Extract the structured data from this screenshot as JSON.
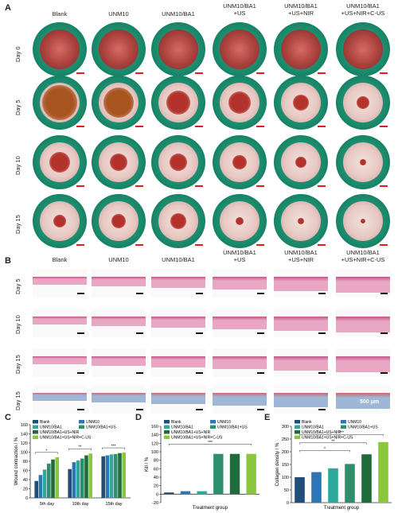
{
  "panels": {
    "A": {
      "letter": "A",
      "columns": [
        "Blank",
        "UNM10",
        "UNM10/BA1",
        "UNM10/BA1\n+US",
        "UNM10/BA1\n+US+NIR",
        "UNM10/BA1\n+US+NIR+C-US"
      ],
      "rows": [
        "Day 0",
        "Day 5",
        "Day 10",
        "Day 15"
      ]
    },
    "B": {
      "letter": "B",
      "columns": [
        "Blank",
        "UNM10",
        "UNM10/BA1",
        "UNM10/BA1\n+US",
        "UNM10/BA1\n+US+NIR",
        "UNM10/BA1\n+US+NIR+C-US"
      ],
      "rows": [
        "Day 5",
        "Day 10",
        "Day 15",
        "Day 15"
      ],
      "scale_label": "500 μm"
    },
    "C": {
      "letter": "C"
    },
    "D": {
      "letter": "D"
    },
    "E": {
      "letter": "E"
    }
  },
  "colors": {
    "blank": "#1f4e79",
    "unm10": "#2e75b6",
    "unm10ba1": "#2ea89a",
    "us": "#2f8f6c",
    "usnir": "#1f6b3a",
    "usnircus": "#8cc63f"
  },
  "chart_data": [
    {
      "type": "bar",
      "ylabel": "Wound contraction / %",
      "ylim": [
        0,
        160
      ],
      "yticks": [
        0,
        20,
        40,
        60,
        80,
        100,
        120,
        140,
        160
      ],
      "categories": [
        "5th day",
        "10th day",
        "15th day"
      ],
      "series": [
        {
          "name": "Blank",
          "values": [
            37,
            63,
            91
          ]
        },
        {
          "name": "UNM10",
          "values": [
            50,
            78,
            93
          ]
        },
        {
          "name": "UNM10/BA1",
          "values": [
            62,
            82,
            95
          ]
        },
        {
          "name": "UNM10/BA1+US",
          "values": [
            75,
            86,
            96
          ]
        },
        {
          "name": "UNM10/BA1+US+NIR",
          "values": [
            84,
            93,
            98
          ]
        },
        {
          "name": "UNM10/BA1+US+NIR+C-US",
          "values": [
            89,
            97,
            99
          ]
        }
      ],
      "annotations": [
        "*",
        "**",
        "***"
      ]
    },
    {
      "type": "bar",
      "ylabel": "Kill / %",
      "xlabel": "Treatment group",
      "ylim": [
        -20,
        160
      ],
      "yticks": [
        -20,
        0,
        20,
        40,
        60,
        80,
        100,
        120,
        140,
        160
      ],
      "categories": [
        "Blank",
        "UNM10",
        "UNM10/BA1",
        "UNM10/BA1+US",
        "UNM10/BA1+US+NIR",
        "UNM10/BA1+US+NIR+C-US"
      ],
      "values": [
        4,
        7,
        7,
        95,
        95,
        95
      ],
      "annotations": [
        "***"
      ]
    },
    {
      "type": "bar",
      "ylabel": "Collagen density / %",
      "xlabel": "Treatment group",
      "ylim": [
        0,
        300
      ],
      "yticks": [
        0,
        50,
        100,
        150,
        200,
        250,
        300
      ],
      "categories": [
        "Blank",
        "UNM10",
        "UNM10/BA1",
        "UNM10/BA1+US",
        "UNM10/BA1+US+NIR",
        "UNM10/BA1+US+NIR+C-US"
      ],
      "values": [
        100,
        120,
        135,
        152,
        190,
        238
      ],
      "annotations": [
        "*",
        "**",
        "***"
      ]
    }
  ]
}
